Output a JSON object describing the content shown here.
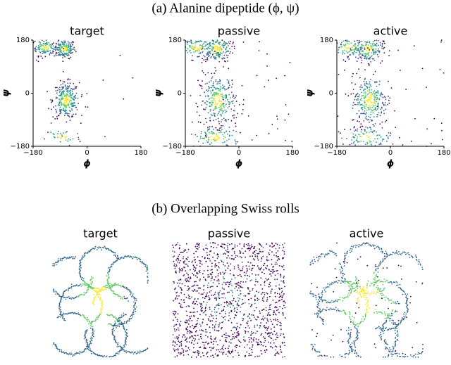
{
  "panel_a": {
    "caption": "(a) Alanine dipeptide (ϕ, ψ)",
    "plots": [
      {
        "title": "target",
        "xlabel": "ϕ",
        "ylabel": "ψ",
        "xlim": [
          -180,
          180
        ],
        "ylim": [
          -180,
          180
        ],
        "xticks": [
          {
            "value": -180,
            "label": "−180"
          },
          0,
          180
        ],
        "yticks": [
          {
            "value": -180,
            "label": "−180"
          },
          0,
          180
        ]
      },
      {
        "title": "passive",
        "xlabel": "ϕ",
        "ylabel": "ψ",
        "xlim": [
          -180,
          180
        ],
        "ylim": [
          -180,
          180
        ],
        "xticks": [
          {
            "value": -180,
            "label": "−180"
          },
          0,
          180
        ],
        "yticks": [
          {
            "value": -180,
            "label": "−180"
          },
          0,
          180
        ]
      },
      {
        "title": "active",
        "xlabel": "ϕ",
        "ylabel": "ψ",
        "xlim": [
          -180,
          180
        ],
        "ylim": [
          -180,
          180
        ],
        "xticks": [
          {
            "value": -180,
            "label": "−180"
          },
          0,
          180
        ],
        "yticks": [
          {
            "value": -180,
            "label": "−180"
          },
          0,
          180
        ]
      }
    ]
  },
  "panel_b": {
    "caption": "(b) Overlapping Swiss rolls",
    "titles": [
      "target",
      "passive",
      "active"
    ]
  }
}
